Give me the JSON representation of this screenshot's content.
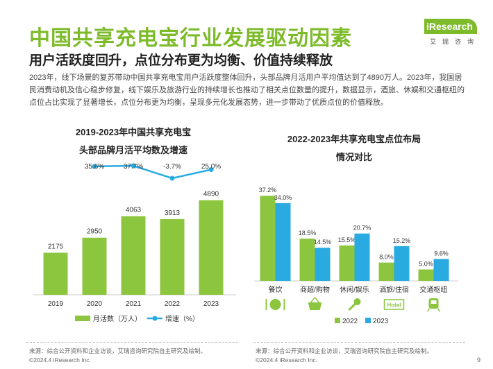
{
  "header": {
    "title": "中国共享充电宝行业发展驱动因素",
    "subtitle": "用户活跃度回升，点位分布更为均衡、价值持续释放",
    "description": "2023年，线下场景的复苏带动中国共享充电宝用户活跃度整体回升，头部品牌月活用户平均值达到了4890万人。2023年，我国居民消费动机及信心稳步修复，线下娱乐及旅游行业的持续增长也推动了相关点位数量的提升，数据显示，酒旅、休娱和交通枢纽的点位占比实现了显著增长，点位分布更为均衡，呈现多元化发展态势，进一步带动了优质点位的价值释放。"
  },
  "logo": {
    "text": "iResearch",
    "sub": "艾瑞咨询"
  },
  "colors": {
    "green": "#8cc63f",
    "blue": "#29abe2",
    "title_green": "#7dbb2a"
  },
  "left_chart": {
    "title_line1": "2019-2023年中国共享充电宝",
    "title_line2": "头部品牌月活平均数及增速",
    "legend_bar": "月活数（万人）",
    "legend_line": "增速（%）",
    "source": "来源：综合公开资料和企业访谈，艾瑞咨询研究院自主研究及绘制。",
    "copyright": "©2024.4 iResearch Inc."
  },
  "right_chart": {
    "title_line1": "2022-2023年共享充电宝点位布局",
    "title_line2": "情况对比",
    "source": "来源：综合公开资料和企业访谈，艾瑞咨询研究院自主研究及绘制。",
    "copyright": "©2024.4 iResearch Inc."
  },
  "page_number": "9",
  "chart_data": [
    {
      "type": "bar",
      "categories": [
        "2019",
        "2020",
        "2021",
        "2022",
        "2023"
      ],
      "series": [
        {
          "name": "月活数（万人）",
          "values": [
            2175,
            2950,
            4063,
            3913,
            4890
          ],
          "value_labels": [
            "2175",
            "2950",
            "4063",
            "3913",
            "4890"
          ]
        }
      ],
      "line_series": [
        {
          "name": "增速（%）",
          "x": [
            "2020",
            "2021",
            "2022",
            "2023"
          ],
          "values": [
            35.6,
            37.7,
            -3.7,
            25.0
          ],
          "value_labels": [
            "35.6%",
            "37.7%",
            "-3.7%",
            "25.0%"
          ]
        }
      ],
      "title": "2019-2023年中国共享充电宝头部品牌月活平均数及增速",
      "ylim": [
        0,
        5200
      ],
      "legend": "bottom"
    },
    {
      "type": "bar",
      "categories": [
        "餐饮",
        "商超/购物",
        "休闲/娱乐",
        "酒旅/住宿",
        "交通枢纽"
      ],
      "series": [
        {
          "name": "2022",
          "values": [
            37.2,
            18.5,
            15.5,
            8.0,
            5.0
          ],
          "value_labels": [
            "37.2%",
            "18.5%",
            "15.5%",
            "8.0%",
            "5.0%"
          ]
        },
        {
          "name": "2023",
          "values": [
            34.0,
            14.5,
            20.7,
            15.2,
            9.6
          ],
          "value_labels": [
            "34.0%",
            "14.5%",
            "20.7%",
            "15.2%",
            "9.6%"
          ]
        }
      ],
      "icons": [
        "dining-icon",
        "shopping-basket-icon",
        "karaoke-mic-icon",
        "hotel-icon",
        "train-icon"
      ],
      "title": "2022-2023年共享充电宝点位布局情况对比",
      "ylim": [
        0,
        40
      ],
      "legend": "bottom"
    }
  ]
}
